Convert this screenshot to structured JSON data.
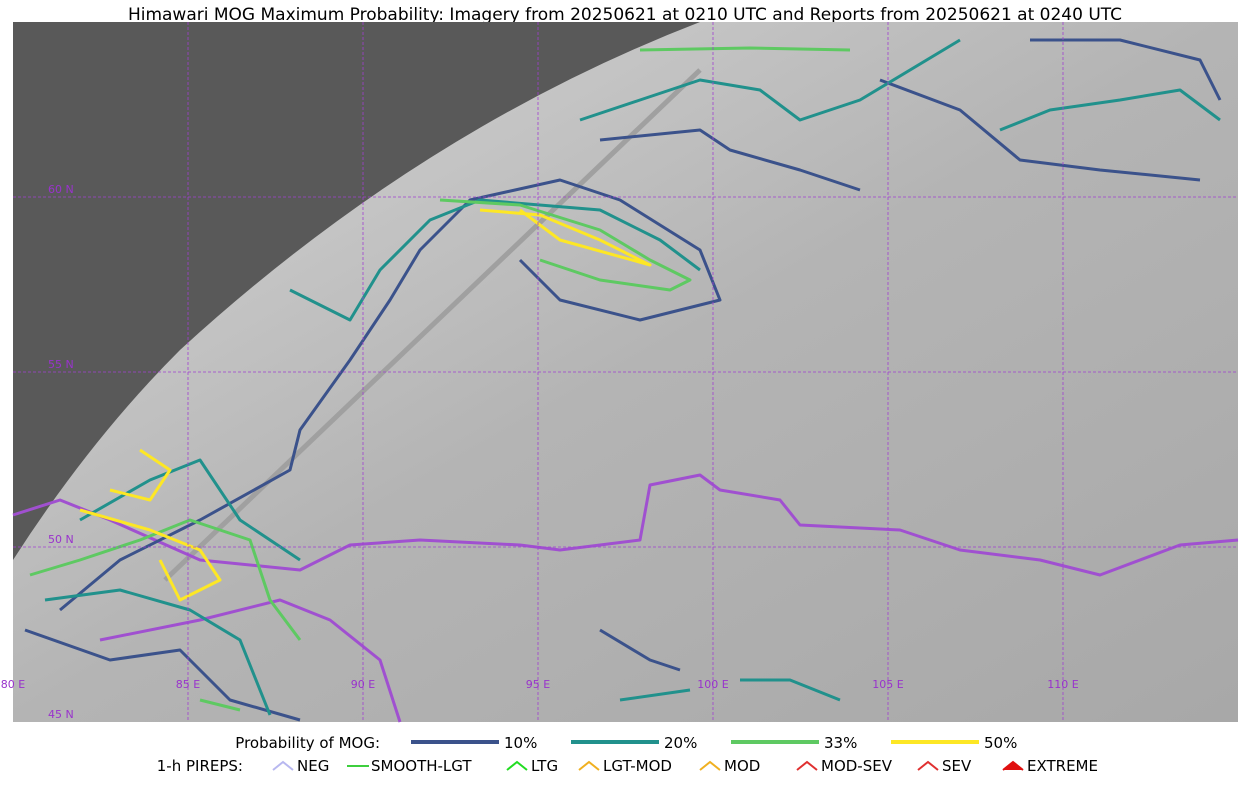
{
  "title": "Himawari MOG Maximum Probability: Imagery from 20250621 at 0210 UTC and Reports from 20250621 at 0240 UTC",
  "map": {
    "lat_labels": [
      "60 N",
      "55 N",
      "50 N",
      "45 N"
    ],
    "lon_labels": [
      "80 E",
      "85 E",
      "90 E",
      "95 E",
      "100 E",
      "105 E",
      "110 E"
    ]
  },
  "legend": {
    "probability": {
      "title": "Probability of MOG:",
      "items": [
        {
          "label": "10%",
          "color": "#3b528b"
        },
        {
          "label": "20%",
          "color": "#21918c"
        },
        {
          "label": "33%",
          "color": "#5ec962"
        },
        {
          "label": "50%",
          "color": "#fde725"
        }
      ]
    },
    "pireps": {
      "title": "1-h PIREPS:",
      "items": [
        {
          "label": "NEG",
          "color": "#b8b8f0"
        },
        {
          "label": "SMOOTH-LGT",
          "color": "#3ecf3e"
        },
        {
          "label": "LTG",
          "color": "#22dd22"
        },
        {
          "label": "LGT-MOD",
          "color": "#f0b020"
        },
        {
          "label": "MOD",
          "color": "#f0b020"
        },
        {
          "label": "MOD-SEV",
          "color": "#e03030"
        },
        {
          "label": "SEV",
          "color": "#e03030"
        },
        {
          "label": "EXTREME",
          "color": "#e01010"
        }
      ]
    }
  }
}
